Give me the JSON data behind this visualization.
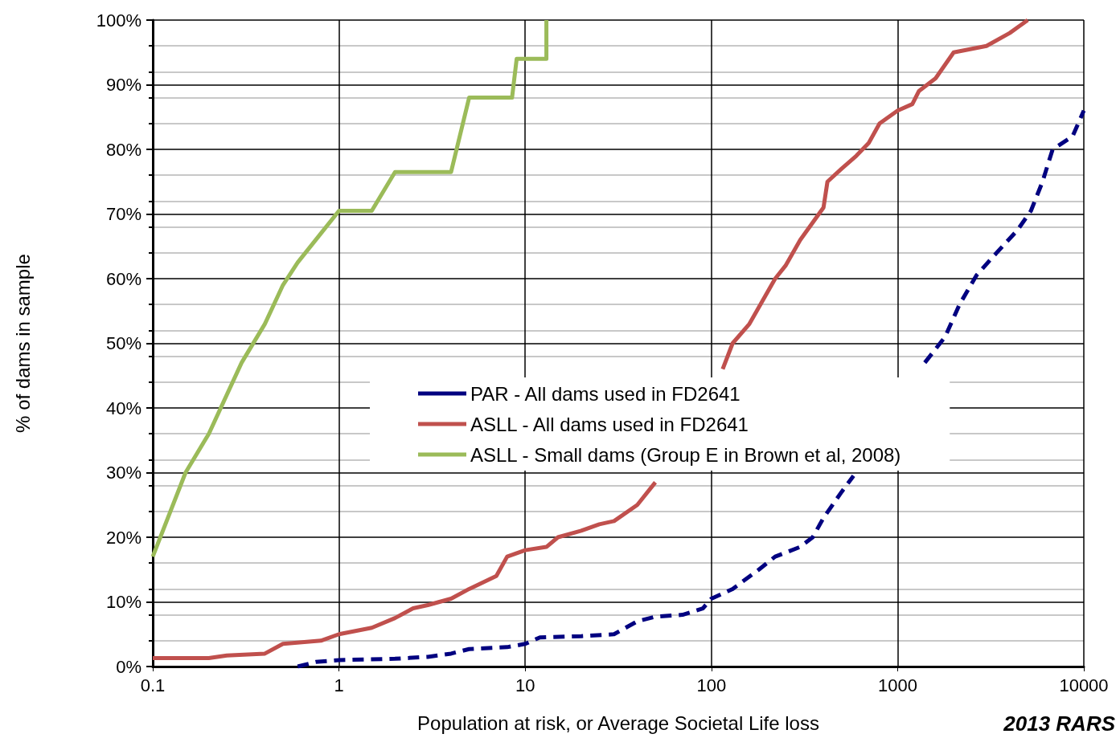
{
  "chart_data": {
    "type": "line",
    "xlabel": "Population at risk, or Average Societal Life loss",
    "ylabel": "% of dams in sample",
    "annotations": [
      "2013 RARS"
    ],
    "log": "x",
    "grid": true,
    "legend": "center",
    "marker": "none",
    "xlim": [
      0.1,
      10000
    ],
    "xticks": [
      0.1,
      1,
      10,
      100,
      1000,
      10000
    ],
    "ylim": [
      0,
      100
    ],
    "yticks": [
      {
        "value": 0,
        "label": "0%"
      },
      {
        "value": 10,
        "label": "10%"
      },
      {
        "value": 20,
        "label": "20%"
      },
      {
        "value": 30,
        "label": "30%"
      },
      {
        "value": 40,
        "label": "40%"
      },
      {
        "value": 50,
        "label": "50%"
      },
      {
        "value": 60,
        "label": "60%"
      },
      {
        "value": 70,
        "label": "70%"
      },
      {
        "value": 80,
        "label": "80%"
      },
      {
        "value": 90,
        "label": "90%"
      },
      {
        "value": 100,
        "label": "100%"
      }
    ],
    "series": [
      {
        "name": "PAR - All dams used in FD2641",
        "color": "#000080",
        "line_style": "dashed",
        "x": [
          0.6,
          0.75,
          1,
          2,
          3,
          4,
          5,
          8,
          10,
          12,
          20,
          30,
          40,
          50,
          70,
          90,
          100,
          130,
          180,
          220,
          300,
          350,
          400,
          500,
          580,
          1000,
          1400,
          1800,
          2150,
          2650,
          3400,
          4400,
          5200,
          6000,
          6800,
          8700,
          10000
        ],
        "values": [
          0,
          0.7,
          1,
          1.2,
          1.5,
          2,
          2.7,
          3,
          3.5,
          4.5,
          4.7,
          5,
          7,
          7.7,
          8,
          9,
          10.5,
          12,
          15,
          17,
          18.5,
          20,
          23,
          27,
          29.5,
          null,
          47,
          51,
          56,
          60.5,
          64,
          67.5,
          70.5,
          75,
          80,
          82,
          86
        ]
      },
      {
        "name": "ASLL - All dams used in FD2641",
        "color": "#c0504d",
        "line_style": "solid",
        "x": [
          0.1,
          0.2,
          0.25,
          0.4,
          0.5,
          0.8,
          1,
          1.5,
          2,
          2.5,
          3,
          4,
          5,
          7,
          8,
          10,
          13,
          15,
          20,
          25,
          30,
          40,
          50,
          80,
          115,
          130,
          160,
          220,
          250,
          300,
          400,
          420,
          500,
          600,
          700,
          800,
          1000,
          1200,
          1300,
          1600,
          2000,
          3000,
          4000,
          5000
        ],
        "values": [
          1.3,
          1.3,
          1.7,
          2,
          3.5,
          4,
          5,
          6,
          7.5,
          9,
          9.5,
          10.5,
          12,
          14,
          17,
          18,
          18.5,
          20,
          21,
          22,
          22.5,
          25,
          28.5,
          null,
          46,
          50,
          53,
          60,
          62,
          66,
          71,
          75,
          77,
          79,
          81,
          84,
          86,
          87,
          89,
          91,
          95,
          96,
          98,
          100
        ]
      },
      {
        "name": "ASLL - Small dams (Group E in Brown et al, 2008)",
        "color": "#9bbb59",
        "line_style": "solid",
        "x": [
          0.1,
          0.15,
          0.2,
          0.3,
          0.4,
          0.5,
          0.6,
          0.8,
          1,
          1.5,
          2,
          4,
          5,
          8.5,
          9,
          13,
          13
        ],
        "values": [
          17,
          30,
          36,
          47,
          53,
          59,
          62.5,
          67,
          70.5,
          70.5,
          76.5,
          76.5,
          88,
          88,
          94,
          94,
          100
        ]
      }
    ]
  }
}
